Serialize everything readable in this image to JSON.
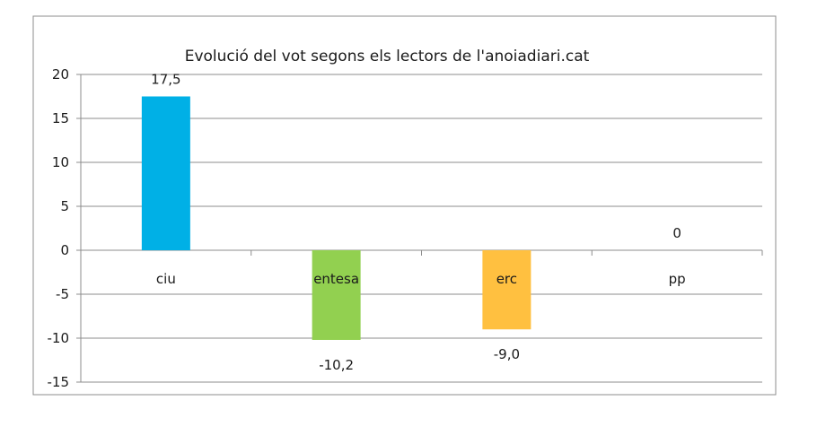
{
  "chart_data": {
    "type": "bar",
    "title": "Evolució del vot segons els lectors de l'anoiadiari.cat",
    "xlabel": "",
    "ylabel": "",
    "categories": [
      "ciu",
      "entesa",
      "erc",
      "pp"
    ],
    "values": [
      17.5,
      -10.2,
      -9.0,
      0
    ],
    "data_labels": [
      "17,5",
      "-10,2",
      "-9,0",
      "0"
    ],
    "colors": [
      "#00b0e6",
      "#92d050",
      "#ffc040",
      "#a0a0a0"
    ],
    "ylim": [
      -15,
      20
    ],
    "yticks": [
      -15,
      -10,
      -5,
      0,
      5,
      10,
      15,
      20
    ],
    "ytick_labels": [
      "-15",
      "-10",
      "-5",
      "0",
      "5",
      "10",
      "15",
      "20"
    ],
    "grid": true,
    "legend": "none"
  }
}
